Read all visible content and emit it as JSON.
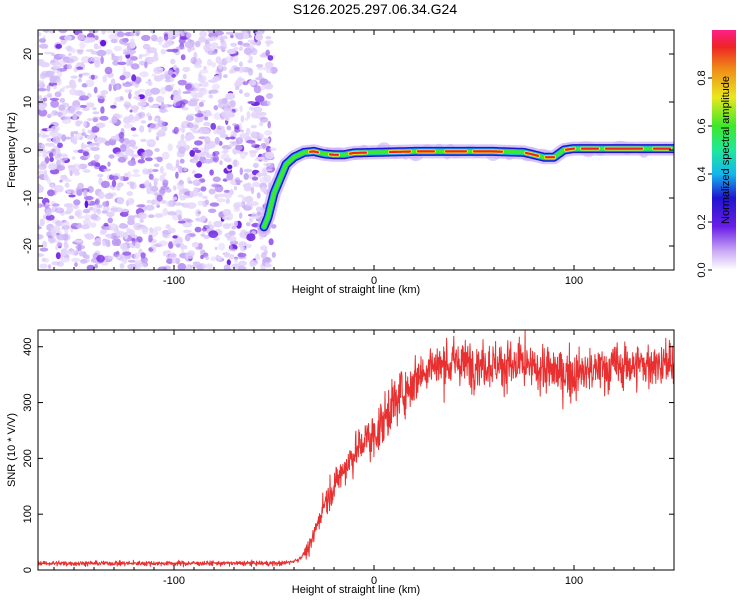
{
  "title": "S126.2025.297.06.34.G24",
  "chart_data": [
    {
      "type": "heatmap",
      "name": "spectrogram",
      "xlabel": "Height of straight line (km)",
      "ylabel": "Frequency (Hz)",
      "xlim": [
        -168,
        150
      ],
      "ylim": [
        -25,
        25
      ],
      "xticks": [
        -100,
        0,
        100
      ],
      "yticks": [
        -20,
        -10,
        0,
        10,
        20
      ],
      "noise_region_x": [
        -168,
        -52
      ],
      "signal_track": {
        "x": [
          -55,
          -53,
          -50,
          -47,
          -44,
          -40,
          -35,
          -30,
          -25,
          -20,
          -15,
          -10,
          0,
          20,
          40,
          60,
          75,
          85,
          90,
          95,
          100,
          120,
          140,
          150
        ],
        "freq_hz": [
          -16,
          -14,
          -9,
          -6,
          -3,
          -1.5,
          -0.5,
          -0.3,
          -0.8,
          -1,
          -1,
          -0.6,
          -0.5,
          -0.3,
          -0.3,
          -0.3,
          -0.5,
          -1.5,
          -1.5,
          0,
          0.3,
          0.3,
          0.3,
          0.3
        ]
      },
      "colorbar": {
        "label": "Normalized spectral amplitude",
        "ticks": [
          "0.0",
          "0.2",
          "0.4",
          "0.6",
          "0.8"
        ],
        "range": [
          0,
          1
        ]
      }
    },
    {
      "type": "line",
      "name": "snr",
      "xlabel": "Height of straight line (km)",
      "ylabel": "SNR (10 * V/V)",
      "xlim": [
        -168,
        150
      ],
      "ylim": [
        0,
        430
      ],
      "xticks": [
        -100,
        0,
        100
      ],
      "yticks": [
        0,
        100,
        200,
        300,
        400
      ],
      "color": "#e83030",
      "trend": {
        "x": [
          -168,
          -45,
          -38,
          -32,
          -25,
          -20,
          -15,
          -10,
          -5,
          0,
          5,
          10,
          15,
          20,
          25,
          30,
          40,
          60,
          80,
          100,
          120,
          150
        ],
        "y": [
          12,
          12,
          18,
          40,
          120,
          150,
          180,
          210,
          230,
          240,
          270,
          300,
          320,
          340,
          360,
          365,
          370,
          370,
          360,
          350,
          365,
          370
        ]
      }
    }
  ]
}
